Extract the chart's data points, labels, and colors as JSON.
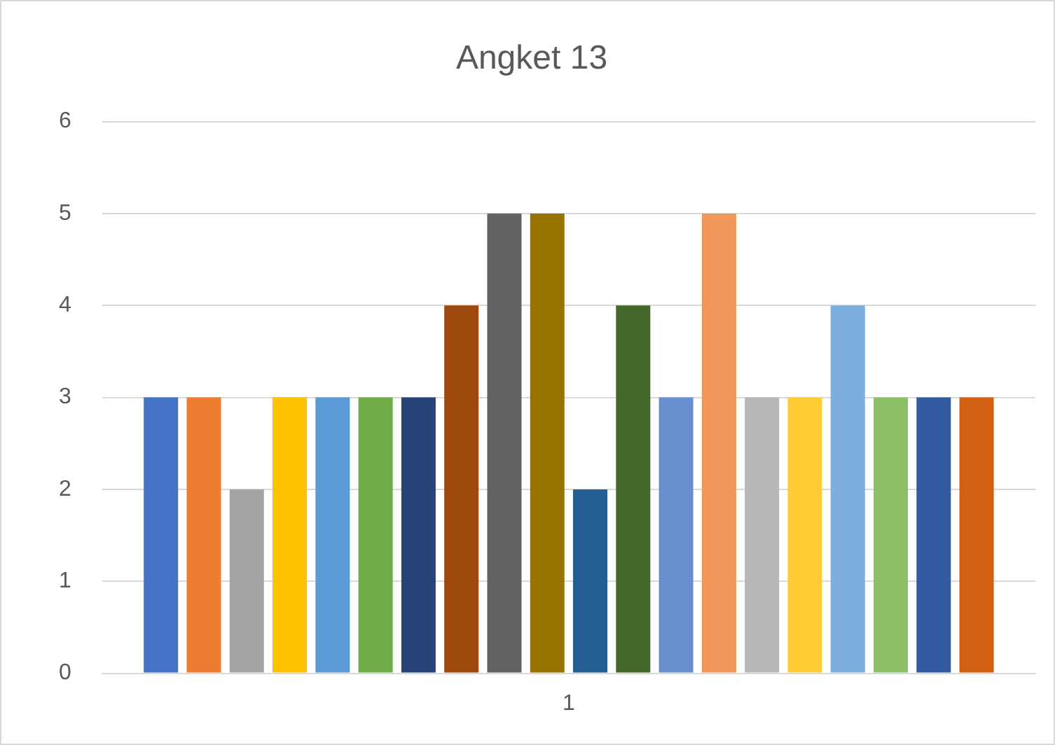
{
  "chart_data": {
    "type": "bar",
    "title": "Angket 13",
    "categories": [
      "1"
    ],
    "series": [
      {
        "color": "#4472c4",
        "values": [
          3
        ]
      },
      {
        "color": "#ed7d31",
        "values": [
          3
        ]
      },
      {
        "color": "#a5a5a5",
        "values": [
          2
        ]
      },
      {
        "color": "#ffc000",
        "values": [
          3
        ]
      },
      {
        "color": "#5b9bd5",
        "values": [
          3
        ]
      },
      {
        "color": "#70ad47",
        "values": [
          3
        ]
      },
      {
        "color": "#264478",
        "values": [
          3
        ]
      },
      {
        "color": "#9e480e",
        "values": [
          4
        ]
      },
      {
        "color": "#636363",
        "values": [
          5
        ]
      },
      {
        "color": "#997300",
        "values": [
          5
        ]
      },
      {
        "color": "#255e91",
        "values": [
          2
        ]
      },
      {
        "color": "#43682b",
        "values": [
          4
        ]
      },
      {
        "color": "#698ed0",
        "values": [
          3
        ]
      },
      {
        "color": "#f1975a",
        "values": [
          5
        ]
      },
      {
        "color": "#b7b7b7",
        "values": [
          3
        ]
      },
      {
        "color": "#ffcd33",
        "values": [
          3
        ]
      },
      {
        "color": "#7cafdd",
        "values": [
          4
        ]
      },
      {
        "color": "#8cc168",
        "values": [
          3
        ]
      },
      {
        "color": "#335aa1",
        "values": [
          3
        ]
      },
      {
        "color": "#d26012",
        "values": [
          3
        ]
      }
    ],
    "ylim": [
      0,
      6
    ],
    "yticks": [
      0,
      1,
      2,
      3,
      4,
      5,
      6
    ],
    "grid": "y",
    "legend": false
  }
}
